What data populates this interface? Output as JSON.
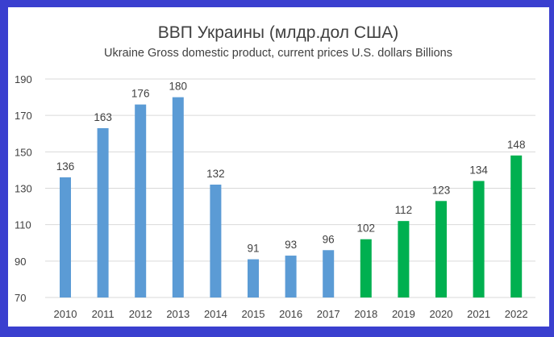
{
  "colors": {
    "border": "#3a3fcf",
    "bar_before": "#5b9bd5",
    "bar_after": "#00b050",
    "grid": "#d9d9d9"
  },
  "chart_data": {
    "type": "bar",
    "title": "ВВП Украины (млдр.дол США)",
    "subtitle": "Ukraine Gross domestic product, current prices U.S. dollars Billions",
    "xlabel": "",
    "ylabel": "",
    "ylim": [
      70,
      190
    ],
    "yticks": [
      70,
      90,
      110,
      130,
      150,
      170,
      190
    ],
    "grid": true,
    "categories": [
      "2010",
      "2011",
      "2012",
      "2013",
      "2014",
      "2015",
      "2016",
      "2017",
      "2018",
      "2019",
      "2020",
      "2021",
      "2022"
    ],
    "values": [
      136,
      163,
      176,
      180,
      132,
      91,
      93,
      96,
      102,
      112,
      123,
      134,
      148
    ],
    "bar_groups": [
      "before",
      "before",
      "before",
      "before",
      "before",
      "before",
      "before",
      "before",
      "after",
      "after",
      "after",
      "after",
      "after"
    ]
  }
}
